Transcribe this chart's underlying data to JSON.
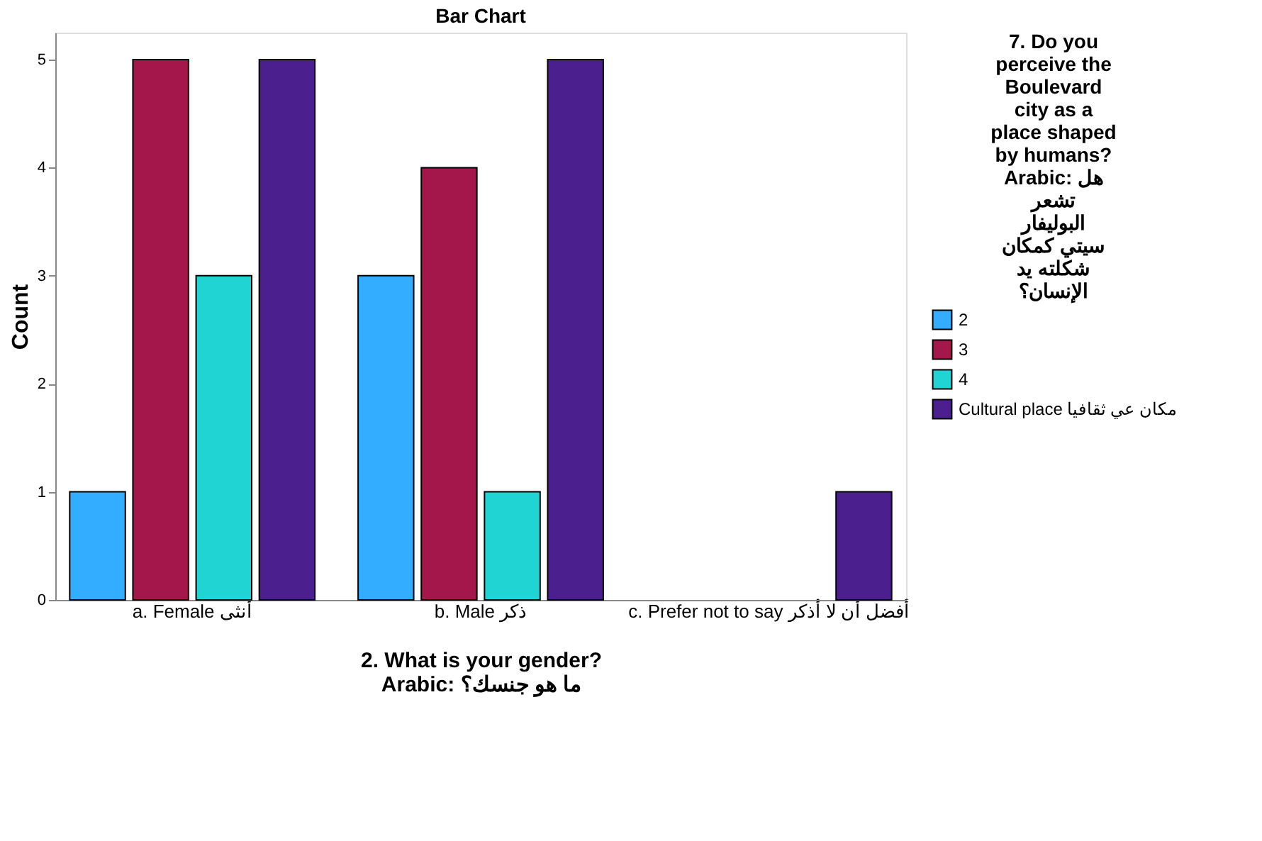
{
  "chart_data": {
    "type": "bar",
    "title": "Bar Chart",
    "xlabel": "2. What is your gender? Arabic: ما هو جنسك؟",
    "ylabel": "Count",
    "legend_title": "7. Do you perceive the Boulevard city as a place shaped by humans? Arabic: هل تشعر البوليفار سيتي كمكان شكلته يد الإنسان؟",
    "categories": [
      "a. Female أنثى",
      "b. Male ذكر",
      "c. Prefer not to say أفضل أن لا أذكر"
    ],
    "series": [
      {
        "name": "2",
        "color": "#33adff",
        "values": [
          1,
          3,
          null
        ]
      },
      {
        "name": "3",
        "color": "#a3174a",
        "values": [
          5,
          4,
          null
        ]
      },
      {
        "name": "4",
        "color": "#21d4d4",
        "values": [
          3,
          1,
          null
        ]
      },
      {
        "name": "Cultural place مكان عي ثقافيا",
        "color": "#4c1f8f",
        "values": [
          5,
          5,
          1
        ]
      }
    ],
    "ylim": [
      0,
      5.25
    ],
    "yticks": [
      0,
      1,
      2,
      3,
      4,
      5
    ],
    "grid": false,
    "legend": "right"
  }
}
